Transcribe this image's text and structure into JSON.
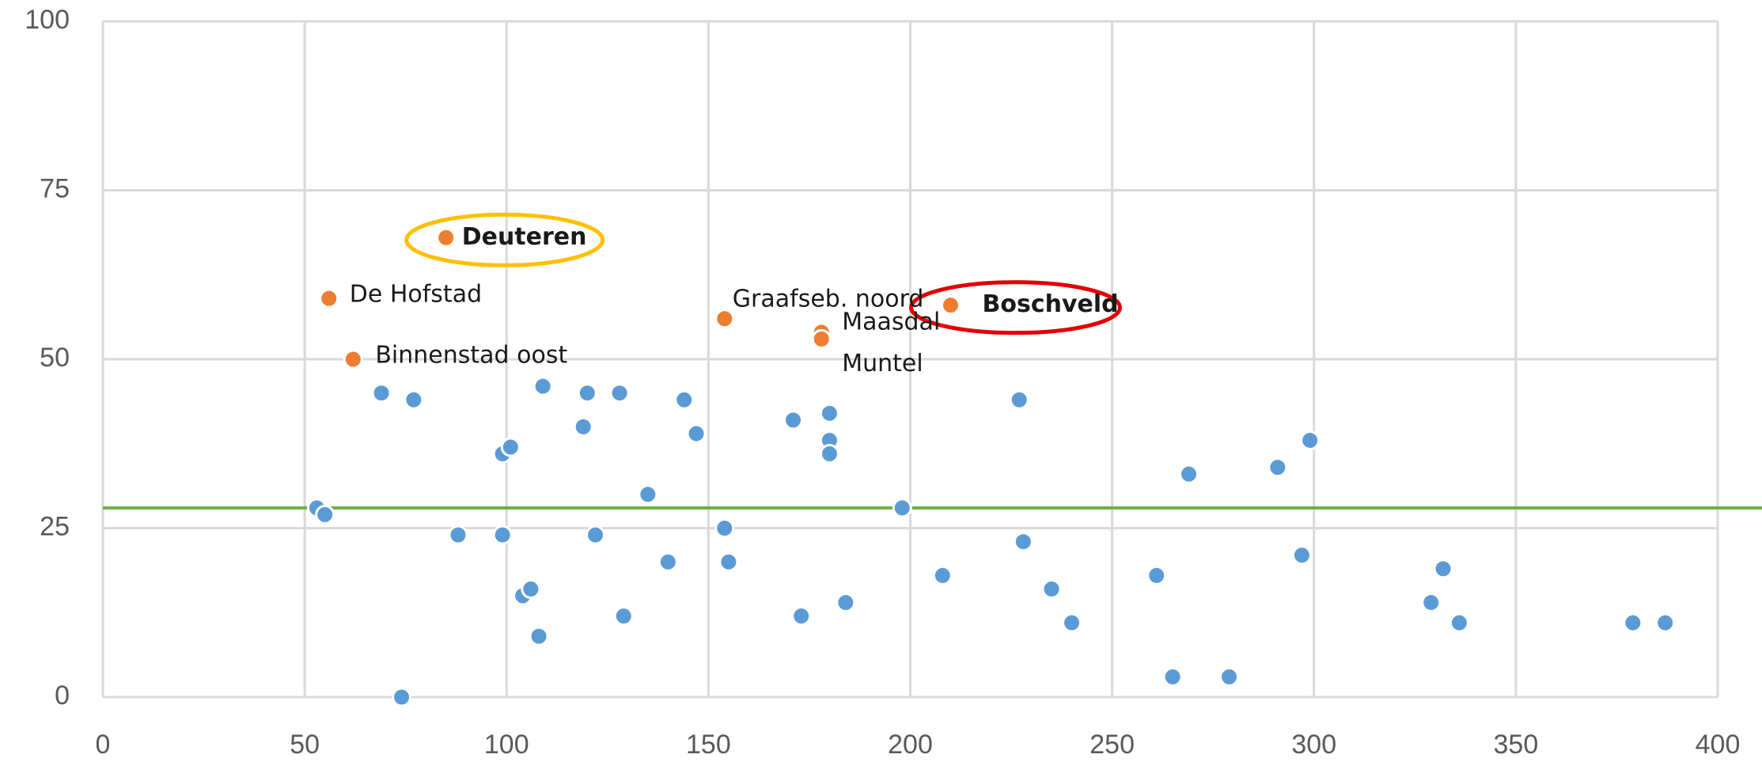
{
  "chart_data": {
    "type": "scatter",
    "xlim": [
      0,
      400
    ],
    "xticks": [
      0,
      50,
      100,
      150,
      200,
      250,
      300,
      350,
      400
    ],
    "ylim": [
      0,
      100
    ],
    "yticks": [
      0,
      25,
      50,
      75,
      100
    ],
    "grid": true,
    "reference_line": {
      "value": 28,
      "color": "#70ad47"
    },
    "series": [
      {
        "color": "#5b9bd5",
        "x": [
          53,
          55,
          69,
          77,
          74,
          88,
          99,
          101,
          99,
          104,
          106,
          108,
          109,
          119,
          120,
          122,
          128,
          129,
          135,
          140,
          144,
          147,
          154,
          155,
          171,
          173,
          180,
          180,
          180,
          184,
          198,
          208,
          227,
          228,
          235,
          240,
          261,
          265,
          269,
          279,
          291,
          297,
          299,
          329,
          332,
          336,
          379,
          387
        ],
        "values": [
          28,
          27,
          45,
          44,
          0,
          24,
          36,
          37,
          24,
          15,
          16,
          9,
          46,
          40,
          45,
          24,
          45,
          12,
          30,
          20,
          44,
          39,
          25,
          20,
          41,
          12,
          42,
          38,
          36,
          14,
          28,
          18,
          44,
          23,
          16,
          11,
          18,
          3,
          33,
          3,
          34,
          21,
          38,
          14,
          19,
          11,
          11,
          11
        ]
      },
      {
        "color": "#ed7d31",
        "x": [
          85,
          56,
          62,
          154,
          178,
          178,
          210
        ],
        "values": [
          68,
          59,
          50,
          56,
          54,
          53,
          58
        ],
        "labels": [
          "Deuteren",
          "De Hofstad",
          "Binnenstad oost",
          "Graafseb. noord",
          "Maasdal",
          "Muntel",
          "Boschveld"
        ],
        "highlights": [
          {
            "index": 0,
            "color": "#ffc000"
          },
          {
            "index": 6,
            "color": "#e00000"
          }
        ]
      }
    ]
  }
}
